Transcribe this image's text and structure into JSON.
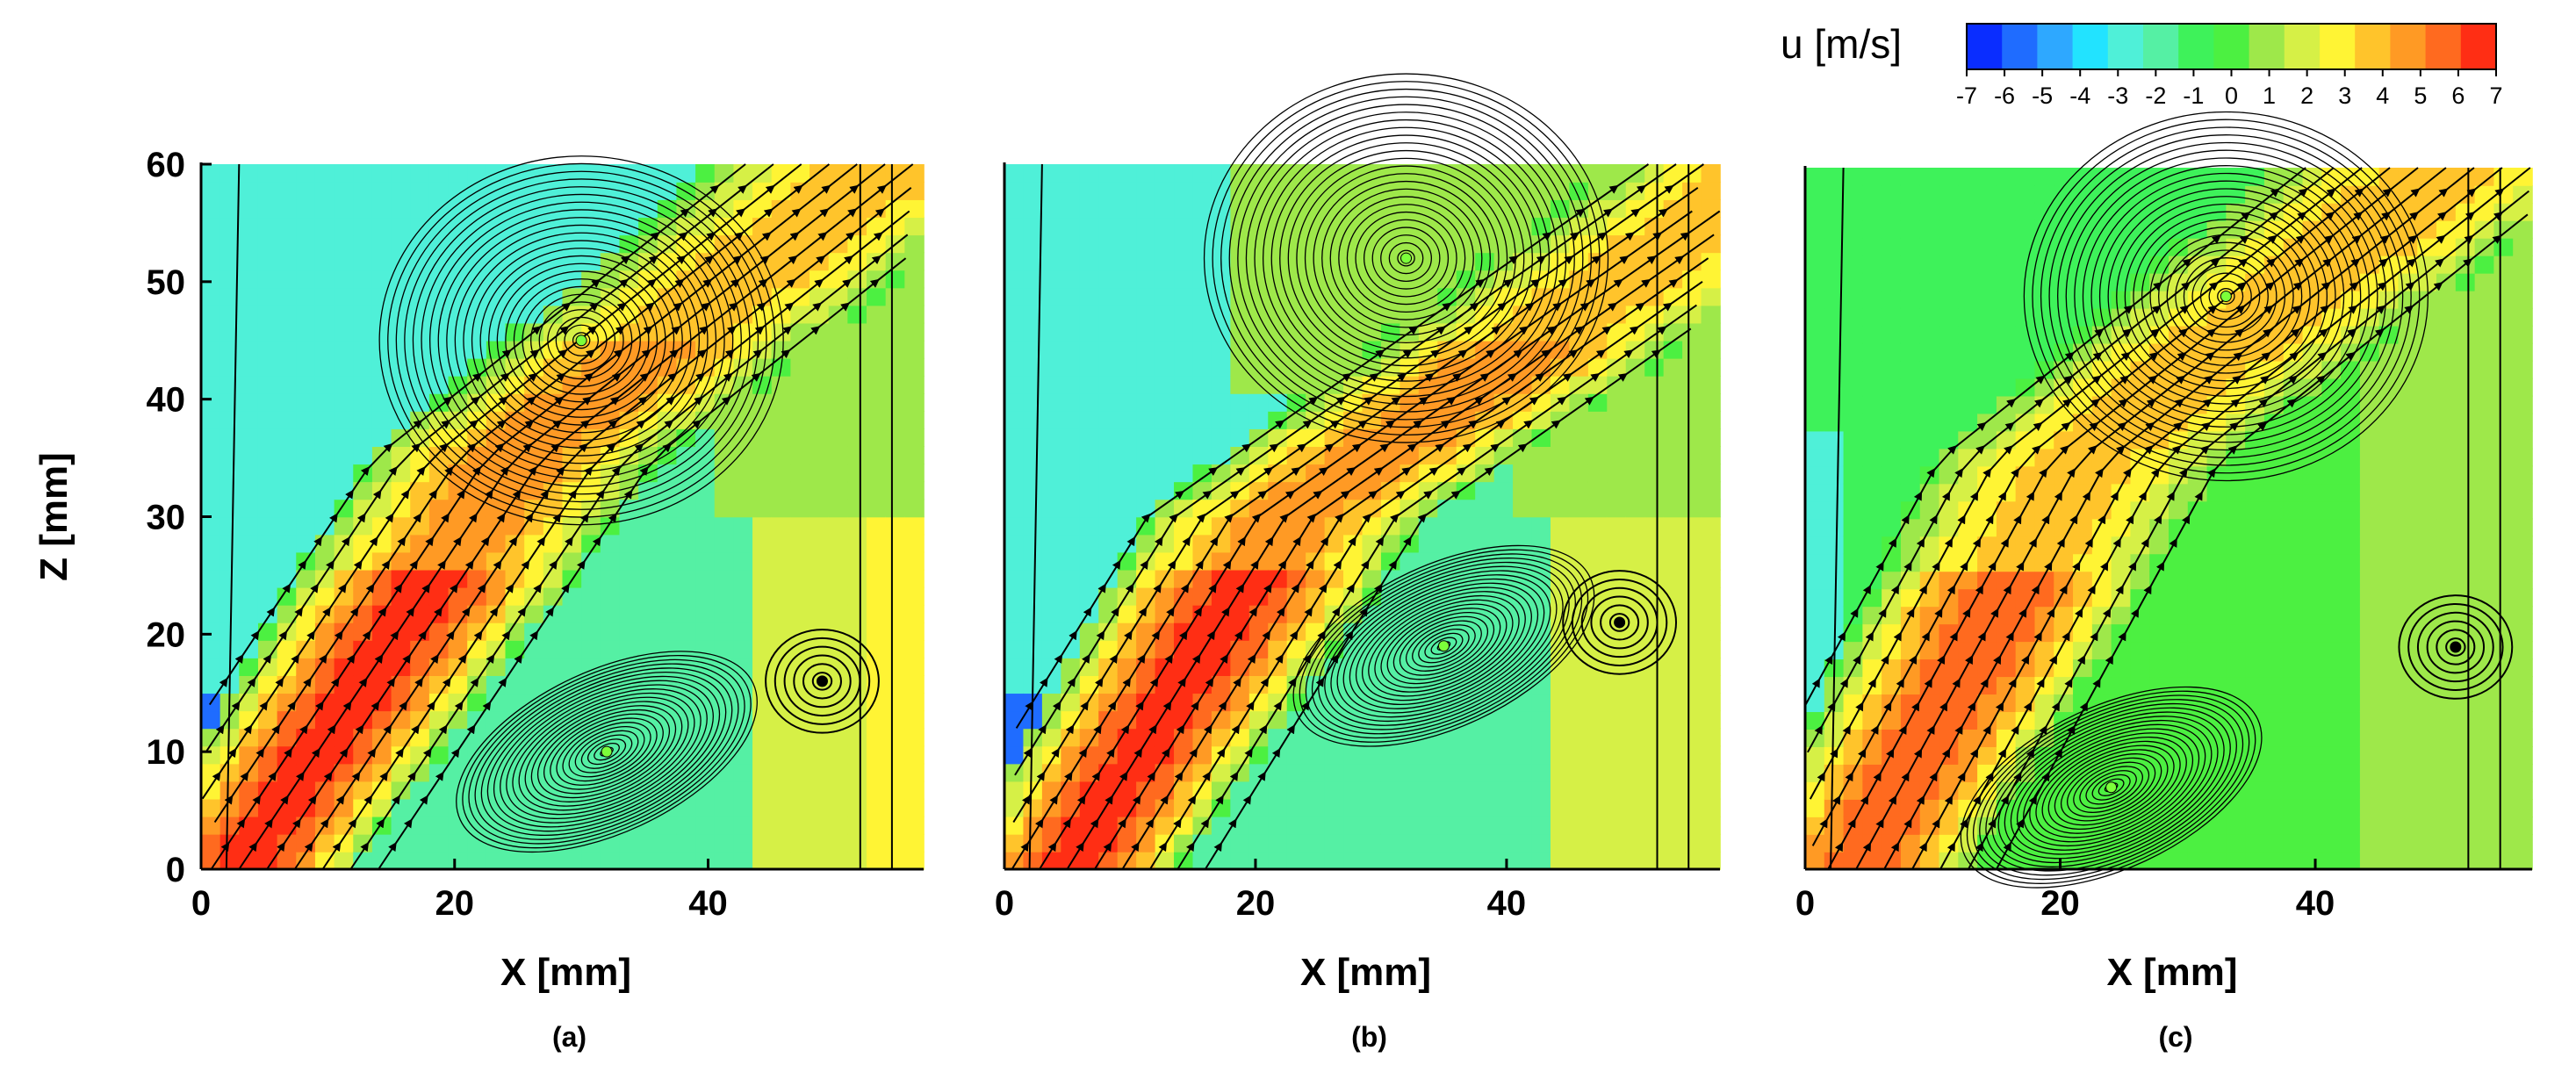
{
  "colorbar": {
    "title": "u [m/s]",
    "levels": [
      -7,
      -6,
      -5,
      -4,
      -3,
      -2,
      -1,
      0,
      1,
      2,
      3,
      4,
      5,
      6,
      7
    ],
    "tick_labels": [
      "-7",
      "-6",
      "-5",
      "-4",
      "-3",
      "-2",
      "-1",
      "0",
      "1",
      "2",
      "3",
      "4",
      "5",
      "6",
      "7"
    ],
    "colors": [
      "#0a2dff",
      "#1f6cff",
      "#2ea8ff",
      "#22e3ff",
      "#4ff0d8",
      "#55f0a4",
      "#3ef25a",
      "#4cf041",
      "#9ee84a",
      "#d6f046",
      "#fff434",
      "#ffc42b",
      "#ff9a24",
      "#ff6a1f",
      "#ff2e14"
    ]
  },
  "chart_data": [
    {
      "type": "heatmap",
      "panel_label": "(a)",
      "xlabel": "X [mm]",
      "ylabel": "Z [mm]",
      "xlim": [
        0,
        57
      ],
      "ylim": [
        0,
        60
      ],
      "x_ticks": [
        0,
        20,
        40
      ],
      "y_ticks": [
        0,
        10,
        20,
        30,
        40,
        50,
        60
      ],
      "field": "u [m/s]",
      "field_range": [
        -7,
        7
      ],
      "vortices": [
        {
          "x": 30,
          "z": 45,
          "sense": "clockwise"
        },
        {
          "x": 32,
          "z": 10,
          "sense": "counterclockwise"
        },
        {
          "x": 49,
          "z": 16,
          "sense": "clockwise"
        }
      ]
    },
    {
      "type": "heatmap",
      "panel_label": "(b)",
      "xlabel": "X [mm]",
      "ylabel": "",
      "xlim": [
        0,
        57
      ],
      "ylim": [
        0,
        60
      ],
      "x_ticks": [
        0,
        20,
        40
      ],
      "y_ticks": [],
      "field": "u [m/s]",
      "field_range": [
        -7,
        7
      ],
      "vortices": [
        {
          "x": 32,
          "z": 52,
          "sense": "clockwise"
        },
        {
          "x": 35,
          "z": 19,
          "sense": "counterclockwise"
        },
        {
          "x": 49,
          "z": 21,
          "sense": "clockwise"
        }
      ]
    },
    {
      "type": "heatmap",
      "panel_label": "(c)",
      "xlabel": "X [mm]",
      "ylabel": "",
      "xlim": [
        0,
        57
      ],
      "ylim": [
        0,
        60
      ],
      "x_ticks": [
        0,
        20,
        40
      ],
      "y_ticks": [],
      "field": "u [m/s]",
      "field_range": [
        -7,
        7
      ],
      "vortices": [
        {
          "x": 33,
          "z": 49,
          "sense": "clockwise"
        },
        {
          "x": 24,
          "z": 7,
          "sense": "counterclockwise"
        },
        {
          "x": 51,
          "z": 19,
          "sense": "clockwise"
        }
      ]
    }
  ]
}
